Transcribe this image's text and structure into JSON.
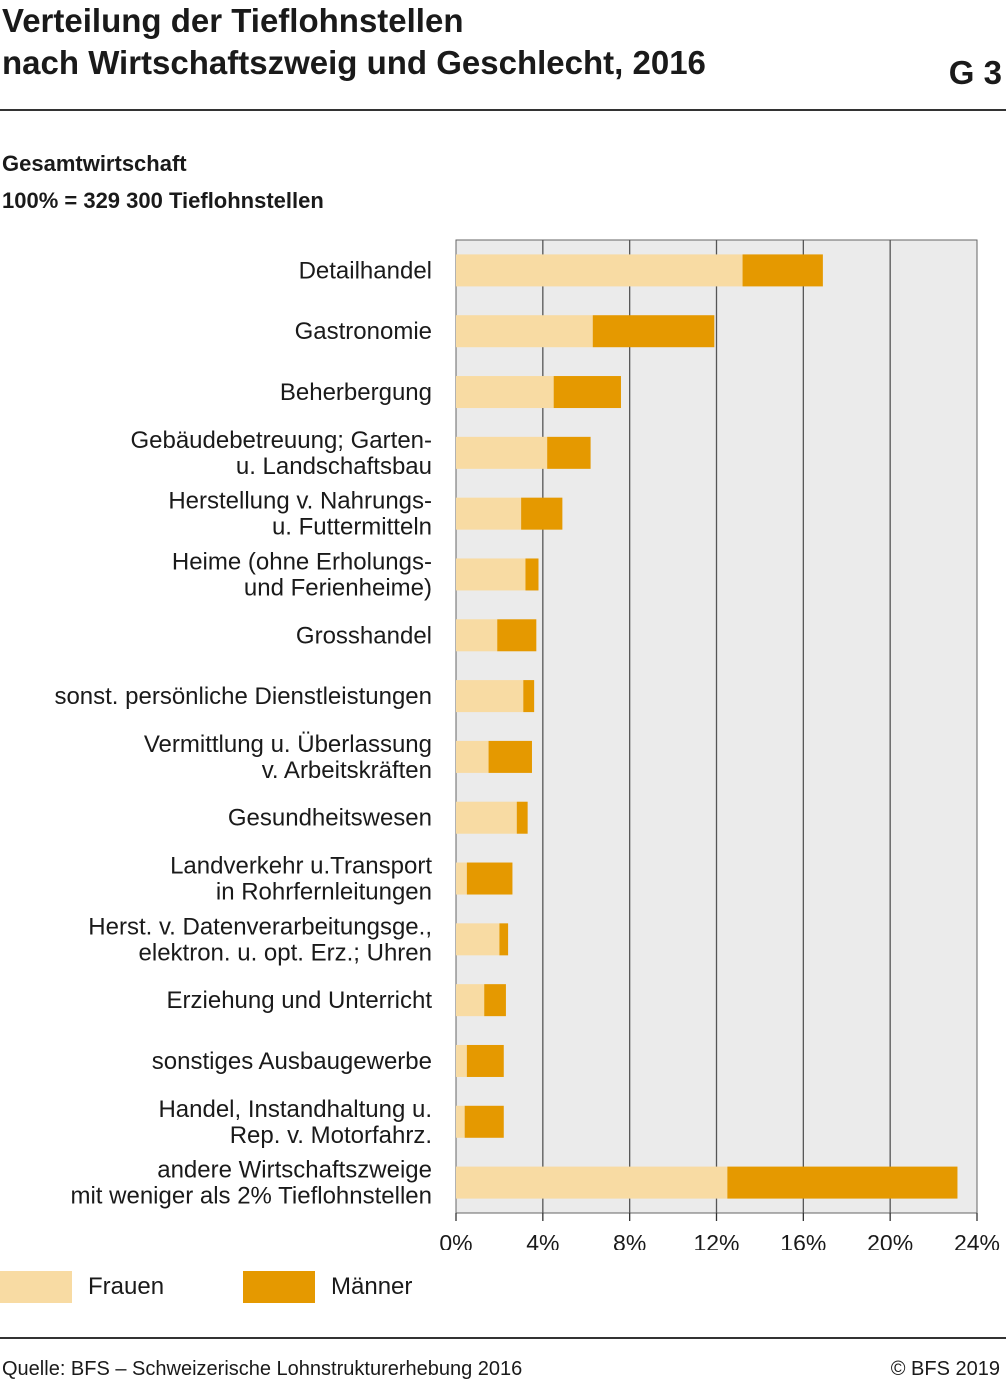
{
  "title": {
    "line1": "Verteilung der Tieflohnstellen",
    "line2": "nach Wirtschaftszweig und Geschlecht, 2016",
    "figure_id": "G 3"
  },
  "subtitle": {
    "line1": "Gesamtwirtschaft",
    "line2": "100% = 329 300 Tieflohnstellen"
  },
  "colors": {
    "frauen": "#f8dba3",
    "maenner": "#e59900",
    "plot_bg": "#ebebeb",
    "grid": "#555555"
  },
  "chart_data": {
    "type": "bar",
    "orientation": "horizontal",
    "stacked": true,
    "categories": [
      [
        "Detailhandel"
      ],
      [
        "Gastronomie"
      ],
      [
        "Beherbergung"
      ],
      [
        "Gebäudebetreuung; Garten-",
        "u. Landschaftsbau"
      ],
      [
        "Herstellung v. Nahrungs-",
        "u. Futtermitteln"
      ],
      [
        "Heime (ohne Erholungs-",
        "und Ferienheime)"
      ],
      [
        "Grosshandel"
      ],
      [
        "sonst. persönliche Dienstleistungen"
      ],
      [
        "Vermittlung u. Überlassung",
        "v. Arbeitskräften"
      ],
      [
        "Gesundheitswesen"
      ],
      [
        "Landverkehr u.Transport",
        "in Rohrfernleitungen"
      ],
      [
        "Herst. v. Datenverarbeitungsge.,",
        "elektron. u. opt. Erz.; Uhren"
      ],
      [
        "Erziehung und Unterricht"
      ],
      [
        "sonstiges Ausbaugewerbe"
      ],
      [
        "Handel, Instandhaltung u.",
        "Rep. v. Motorfahrz."
      ],
      [
        "andere Wirtschaftszweige",
        "mit weniger als 2% Tieflohnstellen"
      ]
    ],
    "series": [
      {
        "name": "Frauen",
        "values": [
          13.2,
          6.3,
          4.5,
          4.2,
          3.0,
          3.2,
          1.9,
          3.1,
          1.5,
          2.8,
          0.5,
          2.0,
          1.3,
          0.5,
          0.4,
          12.5
        ]
      },
      {
        "name": "Männer",
        "values": [
          3.7,
          5.6,
          3.1,
          2.0,
          1.9,
          0.6,
          1.8,
          0.5,
          2.0,
          0.5,
          2.1,
          0.4,
          1.0,
          1.7,
          1.8,
          10.6
        ]
      }
    ],
    "x_ticks": [
      0,
      4,
      8,
      12,
      16,
      20,
      24
    ],
    "x_tick_labels": [
      "0%",
      "4%",
      "8%",
      "12%",
      "16%",
      "20%",
      "24%"
    ],
    "xlim": [
      0,
      24
    ],
    "grid": true,
    "legend_position": "bottom-left"
  },
  "footer": {
    "source": "Quelle: BFS – Schweizerische Lohnstrukturerhebung 2016",
    "copyright": "© BFS 2019"
  }
}
